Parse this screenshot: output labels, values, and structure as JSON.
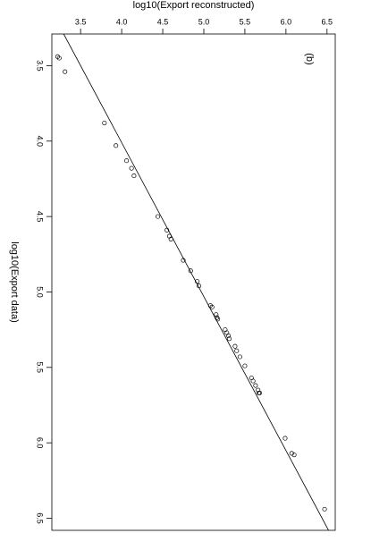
{
  "chart_data": {
    "type": "scatter",
    "title": "(b)",
    "x_label": "log10(Export data)",
    "y_label": "log10(Export reconstructed)",
    "xlim": [
      3.29,
      6.58
    ],
    "ylim": [
      3.15,
      6.6
    ],
    "xticks": [
      3.5,
      {
        "value": 4,
        "label": "4.0"
      },
      4.5,
      {
        "value": 5,
        "label": "5.0"
      },
      5.5,
      {
        "value": 6,
        "label": "6.0"
      },
      6.5
    ],
    "yticks": [
      3.5,
      {
        "value": 4,
        "label": "4.0"
      },
      4.5,
      {
        "value": 5,
        "label": "5.0"
      },
      5.5,
      {
        "value": 6,
        "label": "6.0"
      },
      6.5
    ],
    "color": "#000000",
    "reference_line": {
      "intercept": 0.07,
      "slope": 0.98
    },
    "x": [
      3.44,
      3.45,
      3.54,
      3.88,
      4.03,
      4.13,
      4.18,
      4.23,
      4.5,
      4.59,
      4.63,
      4.65,
      4.79,
      4.86,
      4.93,
      4.96,
      5.09,
      5.1,
      5.15,
      5.17,
      5.18,
      5.25,
      5.27,
      5.29,
      5.31,
      5.36,
      5.39,
      5.43,
      5.49,
      5.57,
      5.59,
      5.62,
      5.65,
      5.67,
      5.67,
      5.97,
      6.07,
      6.08,
      6.44
    ],
    "values": [
      3.22,
      3.24,
      3.31,
      3.79,
      3.93,
      4.06,
      4.12,
      4.15,
      4.44,
      4.55,
      4.58,
      4.6,
      4.75,
      4.84,
      4.92,
      4.94,
      5.08,
      5.1,
      5.15,
      5.16,
      5.17,
      5.26,
      5.28,
      5.3,
      5.31,
      5.38,
      5.4,
      5.44,
      5.5,
      5.58,
      5.6,
      5.63,
      5.66,
      5.67,
      5.68,
      5.99,
      6.07,
      6.1,
      6.47
    ]
  }
}
